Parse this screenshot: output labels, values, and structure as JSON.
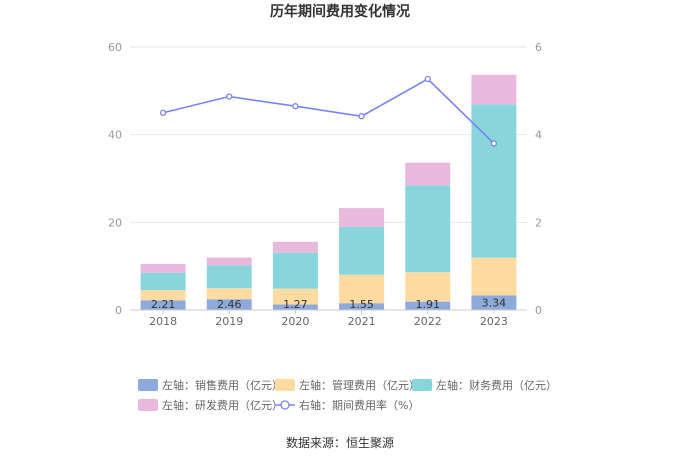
{
  "chart_data": {
    "type": "bar",
    "title": "历年期间费用变化情况",
    "categories": [
      "2018",
      "2019",
      "2020",
      "2021",
      "2022",
      "2023"
    ],
    "stacked": true,
    "series": [
      {
        "name": "左轴：销售费用（亿元）",
        "axis": "left",
        "color": "#8eaadb",
        "values": [
          2.21,
          2.46,
          1.27,
          1.55,
          1.91,
          3.34
        ],
        "labels": [
          "2.21",
          "2.46",
          "1.27",
          "1.55",
          "1.91",
          "3.34"
        ]
      },
      {
        "name": "左轴：管理费用（亿元）",
        "axis": "left",
        "color": "#ffdba1",
        "values": [
          2.3,
          2.5,
          3.6,
          6.5,
          6.7,
          8.6
        ]
      },
      {
        "name": "左轴：财务费用（亿元）",
        "axis": "left",
        "color": "#88d6db",
        "values": [
          4.0,
          5.2,
          8.2,
          10.9,
          19.8,
          35.0
        ]
      },
      {
        "name": "左轴：研发费用（亿元）",
        "axis": "left",
        "color": "#e8b9dc",
        "values": [
          2.0,
          1.8,
          2.5,
          4.3,
          5.2,
          6.7
        ]
      },
      {
        "name": "右轴：期间费用率（%）",
        "axis": "right",
        "type": "line",
        "color": "#7b83ef",
        "values": [
          4.5,
          4.87,
          4.65,
          4.42,
          5.27,
          3.8
        ]
      }
    ],
    "ylim_left": [
      0,
      60
    ],
    "yticks_left": [
      "0",
      "20",
      "40",
      "60"
    ],
    "ylim_right": [
      0,
      6
    ],
    "yticks_right": [
      "0",
      "2",
      "4",
      "6"
    ],
    "grid": true,
    "legend_position": "bottom",
    "source": "数据来源：恒生聚源"
  }
}
